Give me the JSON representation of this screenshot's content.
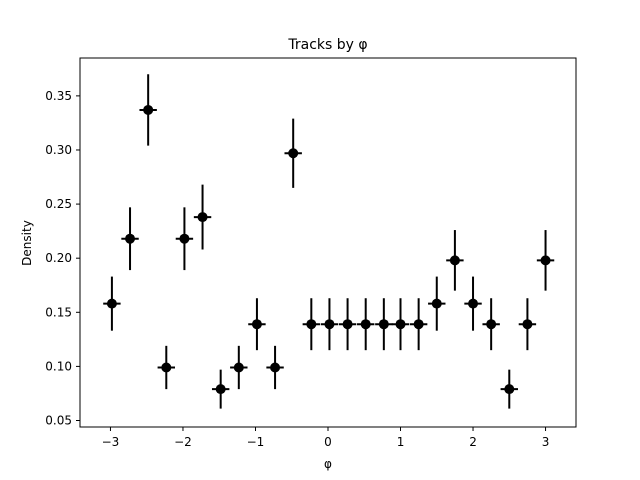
{
  "chart_data": {
    "type": "scatter",
    "title": "Tracks by φ",
    "xlabel": "φ",
    "ylabel": "Density",
    "xlim": [
      -3.42,
      3.42
    ],
    "ylim": [
      0.044,
      0.385
    ],
    "grid": false,
    "xticks": [
      {
        "value": -3,
        "label": "−3"
      },
      {
        "value": -2,
        "label": "−2"
      },
      {
        "value": -1,
        "label": "−1"
      },
      {
        "value": 0,
        "label": "0"
      },
      {
        "value": 1,
        "label": "1"
      },
      {
        "value": 2,
        "label": "2"
      },
      {
        "value": 3,
        "label": "3"
      }
    ],
    "yticks": [
      {
        "value": 0.05,
        "label": "0.05"
      },
      {
        "value": 0.1,
        "label": "0.10"
      },
      {
        "value": 0.15,
        "label": "0.15"
      },
      {
        "value": 0.2,
        "label": "0.20"
      },
      {
        "value": 0.25,
        "label": "0.25"
      },
      {
        "value": 0.3,
        "label": "0.30"
      },
      {
        "value": 0.35,
        "label": "0.35"
      }
    ],
    "marker_color": "#000000",
    "series": [
      {
        "points": [
          {
            "x": -2.98,
            "y": 0.158,
            "xerr": 0.12,
            "yerr": 0.025
          },
          {
            "x": -2.73,
            "y": 0.218,
            "xerr": 0.12,
            "yerr": 0.029
          },
          {
            "x": -2.48,
            "y": 0.337,
            "xerr": 0.12,
            "yerr": 0.033
          },
          {
            "x": -2.23,
            "y": 0.099,
            "xerr": 0.12,
            "yerr": 0.02
          },
          {
            "x": -1.98,
            "y": 0.218,
            "xerr": 0.12,
            "yerr": 0.029
          },
          {
            "x": -1.73,
            "y": 0.238,
            "xerr": 0.12,
            "yerr": 0.03
          },
          {
            "x": -1.48,
            "y": 0.079,
            "xerr": 0.12,
            "yerr": 0.018
          },
          {
            "x": -1.23,
            "y": 0.099,
            "xerr": 0.12,
            "yerr": 0.02
          },
          {
            "x": -0.98,
            "y": 0.139,
            "xerr": 0.12,
            "yerr": 0.024
          },
          {
            "x": -0.73,
            "y": 0.099,
            "xerr": 0.12,
            "yerr": 0.02
          },
          {
            "x": -0.48,
            "y": 0.297,
            "xerr": 0.12,
            "yerr": 0.032
          },
          {
            "x": -0.23,
            "y": 0.139,
            "xerr": 0.12,
            "yerr": 0.024
          },
          {
            "x": 0.02,
            "y": 0.139,
            "xerr": 0.12,
            "yerr": 0.024
          },
          {
            "x": 0.27,
            "y": 0.139,
            "xerr": 0.12,
            "yerr": 0.024
          },
          {
            "x": 0.52,
            "y": 0.139,
            "xerr": 0.12,
            "yerr": 0.024
          },
          {
            "x": 0.77,
            "y": 0.139,
            "xerr": 0.12,
            "yerr": 0.024
          },
          {
            "x": 1.0,
            "y": 0.139,
            "xerr": 0.12,
            "yerr": 0.024
          },
          {
            "x": 1.25,
            "y": 0.139,
            "xerr": 0.12,
            "yerr": 0.024
          },
          {
            "x": 1.5,
            "y": 0.158,
            "xerr": 0.12,
            "yerr": 0.025
          },
          {
            "x": 1.75,
            "y": 0.198,
            "xerr": 0.12,
            "yerr": 0.028
          },
          {
            "x": 2.0,
            "y": 0.158,
            "xerr": 0.12,
            "yerr": 0.025
          },
          {
            "x": 2.25,
            "y": 0.139,
            "xerr": 0.12,
            "yerr": 0.024
          },
          {
            "x": 2.5,
            "y": 0.079,
            "xerr": 0.12,
            "yerr": 0.018
          },
          {
            "x": 2.75,
            "y": 0.139,
            "xerr": 0.12,
            "yerr": 0.024
          },
          {
            "x": 3.0,
            "y": 0.198,
            "xerr": 0.12,
            "yerr": 0.028
          }
        ]
      }
    ]
  }
}
